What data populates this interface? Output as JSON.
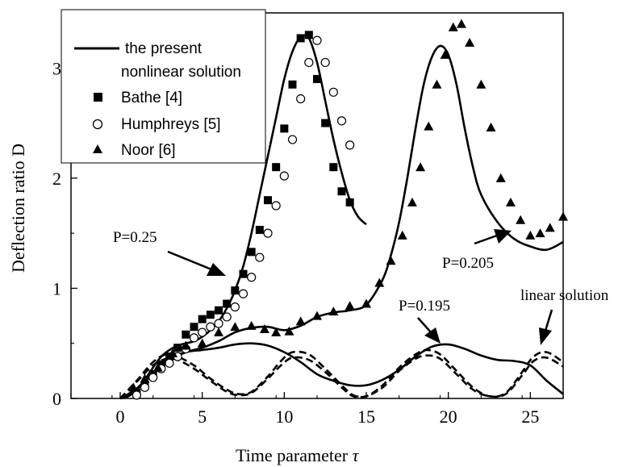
{
  "chart_data": {
    "type": "line",
    "title": "",
    "xlabel": "Time parameter  ",
    "xlabel_symbol": "τ",
    "ylabel": "Deflection  ratio  D",
    "xlim": [
      -3,
      27
    ],
    "ylim": [
      0,
      3.5
    ],
    "xticks": [
      0,
      5,
      10,
      15,
      20,
      25
    ],
    "yticks": [
      0,
      1,
      2,
      3
    ],
    "grid": false,
    "legend_position": "top-left",
    "legend": [
      {
        "label": "the present",
        "label2": "nonlinear solution",
        "marker": "line"
      },
      {
        "label": "Bathe [4]",
        "marker": "square"
      },
      {
        "label": "Humphreys [5]",
        "marker": "circle-open"
      },
      {
        "label": "Noor [6]",
        "marker": "triangle"
      }
    ],
    "annotations": [
      {
        "text": "P=0.25",
        "at": [
          8.3,
          1.18
        ],
        "arrow_to": [
          8.6,
          1.18
        ]
      },
      {
        "text": "P=0.205",
        "at": [
          25.3,
          1.52
        ],
        "arrow_to": [
          25.3,
          1.52
        ]
      },
      {
        "text": "P=0.195",
        "at": [
          19.8,
          0.52
        ],
        "arrow_to": [
          19.8,
          0.52
        ]
      },
      {
        "text": "linear solution",
        "at": [
          26.2,
          0.5
        ],
        "arrow_to": [
          26.2,
          0.5
        ]
      }
    ],
    "series": [
      {
        "name": "the present nonlinear solution",
        "style": "solid",
        "x": [
          0,
          0.5,
          1,
          1.5,
          2,
          2.5,
          3,
          3.5,
          4,
          4.5,
          5,
          5.5,
          6,
          6.5,
          7,
          7.5,
          8,
          8.5,
          9,
          9.5,
          10,
          10.5,
          11,
          11.5,
          12,
          12.5,
          13,
          13.5,
          14,
          14.5,
          15
        ],
        "y": [
          0,
          0.02,
          0.08,
          0.17,
          0.28,
          0.38,
          0.44,
          0.48,
          0.5,
          0.52,
          0.56,
          0.62,
          0.7,
          0.82,
          0.98,
          1.2,
          1.5,
          1.85,
          2.2,
          2.55,
          2.9,
          3.15,
          3.28,
          3.27,
          3.05,
          2.7,
          2.35,
          2.05,
          1.8,
          1.65,
          1.58
        ]
      },
      {
        "name": "the present nonlinear solution",
        "style": "solid",
        "x": [
          0,
          1,
          2,
          3,
          4,
          5,
          6,
          7,
          8,
          9,
          10,
          11,
          12,
          13,
          14,
          15,
          16,
          16.5,
          17,
          17.5,
          18,
          18.5,
          19,
          19.5,
          20,
          20.5,
          21,
          21.5,
          22,
          23,
          24,
          25,
          26,
          27
        ],
        "y": [
          0,
          0.08,
          0.22,
          0.34,
          0.42,
          0.46,
          0.52,
          0.6,
          0.64,
          0.65,
          0.62,
          0.66,
          0.74,
          0.78,
          0.8,
          0.85,
          1.08,
          1.3,
          1.6,
          2.0,
          2.45,
          2.85,
          3.1,
          3.2,
          3.12,
          2.85,
          2.45,
          2.1,
          1.85,
          1.6,
          1.45,
          1.38,
          1.35,
          1.42
        ]
      },
      {
        "name": "the present nonlinear solution",
        "style": "solid",
        "x": [
          0,
          1,
          2,
          3,
          4,
          5,
          6,
          7,
          8,
          9,
          10,
          11,
          12,
          13,
          14,
          15,
          16,
          17,
          18,
          19,
          20,
          21,
          22,
          23,
          24,
          25,
          26,
          27
        ],
        "y": [
          0,
          0.09,
          0.24,
          0.36,
          0.42,
          0.44,
          0.46,
          0.49,
          0.5,
          0.48,
          0.42,
          0.33,
          0.22,
          0.16,
          0.12,
          0.12,
          0.17,
          0.26,
          0.38,
          0.47,
          0.49,
          0.45,
          0.39,
          0.35,
          0.34,
          0.3,
          0.16,
          0.04
        ]
      },
      {
        "name": "linear solution",
        "style": "dashed",
        "x": [
          0,
          1,
          2,
          2.8,
          3.5,
          4.5,
          5.5,
          6.5,
          7.2,
          8,
          9,
          9.8,
          10.5,
          11.5,
          12.5,
          13.5,
          14.2,
          15,
          16,
          17,
          18,
          18.7,
          19.5,
          20.5,
          21.5,
          22.5,
          23.5,
          24.5,
          25.2,
          26,
          27
        ],
        "y": [
          0,
          0.16,
          0.33,
          0.4,
          0.38,
          0.3,
          0.18,
          0.08,
          0.04,
          0.06,
          0.2,
          0.34,
          0.42,
          0.4,
          0.27,
          0.12,
          0.03,
          0.02,
          0.12,
          0.28,
          0.4,
          0.44,
          0.4,
          0.25,
          0.1,
          0.02,
          0.05,
          0.24,
          0.38,
          0.42,
          0.33
        ]
      },
      {
        "name": "linear solution",
        "style": "dashed",
        "x": [
          0,
          1,
          2,
          2.8,
          3.5,
          4.5,
          5.5,
          6.5,
          7.2,
          8,
          9,
          9.8,
          10.5,
          11.5,
          12.5,
          13.5,
          14.2,
          15,
          16,
          17,
          18,
          18.7,
          19.5,
          20.5,
          21.5,
          22.5,
          23.5,
          24.5,
          25.2,
          26,
          27
        ],
        "y": [
          0,
          0.15,
          0.3,
          0.36,
          0.35,
          0.27,
          0.16,
          0.06,
          0.03,
          0.05,
          0.18,
          0.3,
          0.37,
          0.35,
          0.24,
          0.1,
          0.02,
          0.02,
          0.1,
          0.25,
          0.36,
          0.39,
          0.36,
          0.22,
          0.08,
          0.02,
          0.04,
          0.21,
          0.34,
          0.37,
          0.29
        ]
      },
      {
        "name": "Bathe [4]",
        "marker": "square",
        "x": [
          1,
          1.5,
          2,
          2.5,
          3,
          3.5,
          4,
          4.5,
          5,
          5.5,
          6,
          6.5,
          7,
          7.5,
          8,
          8.5,
          9,
          9.5,
          10,
          10.5,
          11,
          11.5,
          12,
          12.5,
          13,
          13.5,
          14
        ],
        "y": [
          0.05,
          0.12,
          0.22,
          0.31,
          0.38,
          0.46,
          0.58,
          0.65,
          0.72,
          0.76,
          0.8,
          0.86,
          0.98,
          1.13,
          1.33,
          1.53,
          1.8,
          2.1,
          2.45,
          2.85,
          3.27,
          3.3,
          2.9,
          2.5,
          2.1,
          1.88,
          1.78
        ]
      },
      {
        "name": "Humphreys [5]",
        "marker": "circle-open",
        "x": [
          1,
          1.5,
          2,
          2.5,
          3,
          3.5,
          4,
          4.5,
          5,
          5.5,
          6,
          6.5,
          7,
          7.5,
          8,
          8.5,
          9,
          9.5,
          10,
          10.5,
          11,
          11.5,
          12,
          12.5,
          13,
          13.5,
          14
        ],
        "y": [
          0.03,
          0.1,
          0.19,
          0.27,
          0.32,
          0.38,
          0.45,
          0.55,
          0.6,
          0.65,
          0.68,
          0.74,
          0.83,
          0.95,
          1.1,
          1.28,
          1.5,
          1.75,
          2.02,
          2.35,
          2.72,
          3.05,
          3.25,
          3.05,
          2.78,
          2.52,
          2.3
        ]
      },
      {
        "name": "Noor [6]",
        "marker": "triangle",
        "x": [
          0.8,
          1.5,
          2.3,
          3.2,
          4.0,
          5.0,
          6.0,
          7.0,
          8.0,
          8.8,
          9.5,
          10.3,
          11.0,
          12.0,
          13.0,
          14.0,
          15.0,
          15.8,
          16.5,
          17.2,
          17.8,
          18.3,
          18.8,
          19.3,
          19.8,
          20.3,
          20.8,
          21.3,
          22.0,
          22.6,
          23.2,
          23.8,
          24.4,
          25.0,
          25.6,
          26.2,
          27.0
        ],
        "y": [
          0.1,
          0.18,
          0.28,
          0.41,
          0.48,
          0.5,
          0.6,
          0.65,
          0.66,
          0.63,
          0.6,
          0.61,
          0.7,
          0.75,
          0.79,
          0.84,
          0.86,
          1.05,
          1.25,
          1.48,
          1.78,
          2.1,
          2.47,
          2.85,
          3.12,
          3.37,
          3.4,
          3.23,
          2.85,
          2.46,
          2.0,
          1.78,
          1.62,
          1.48,
          1.5,
          1.55,
          1.65
        ]
      }
    ]
  }
}
